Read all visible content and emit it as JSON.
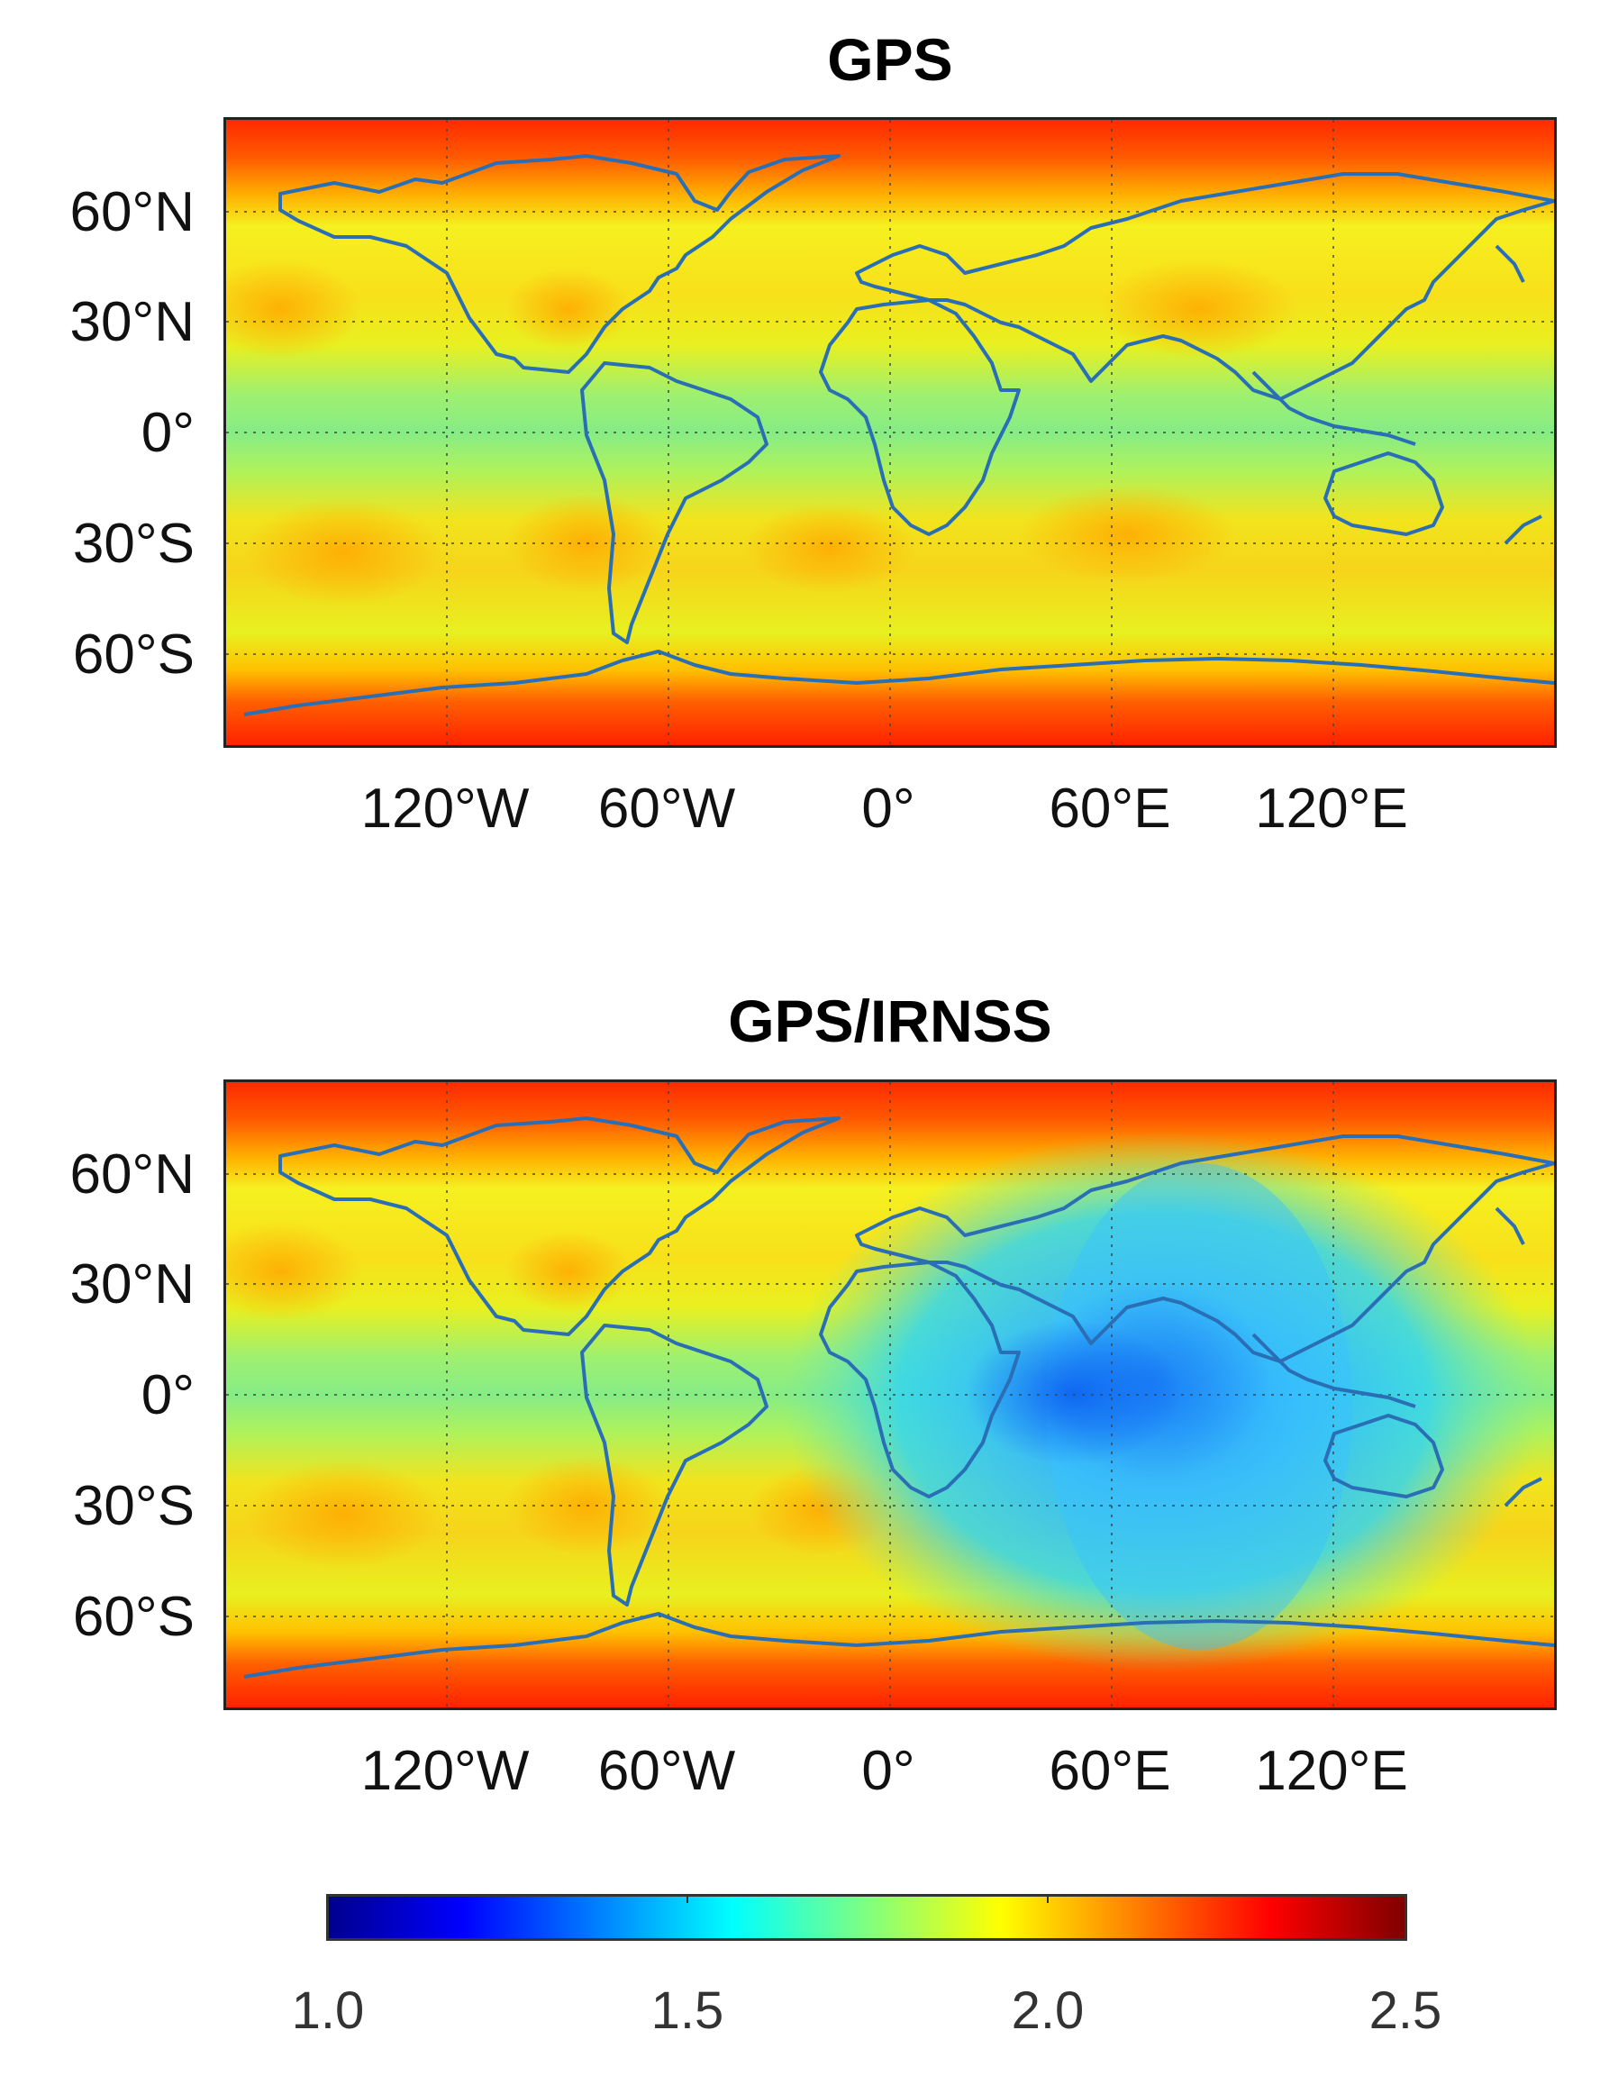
{
  "panels": [
    {
      "title": "GPS",
      "variant": "gps"
    },
    {
      "title": "GPS/IRNSS",
      "variant": "gps_irnss"
    }
  ],
  "axes": {
    "lat_ticks": [
      "60°N",
      "30°N",
      "0°",
      "30°S",
      "60°S"
    ],
    "lon_ticks": [
      "120°W",
      "60°W",
      "0°",
      "60°E",
      "120°E"
    ]
  },
  "colorbar": {
    "labels": [
      "1.0",
      "1.5",
      "2.0",
      "2.5"
    ],
    "range": [
      1.0,
      2.5
    ],
    "colormap": "jet"
  },
  "colors": {
    "coastline": "#2a6fb5",
    "grid": "#444444",
    "polar_high": "#ff2a00",
    "mid_lat": "#ffc000",
    "equator_band": "#8ef070",
    "irnss_low": "#19b6ff"
  }
}
